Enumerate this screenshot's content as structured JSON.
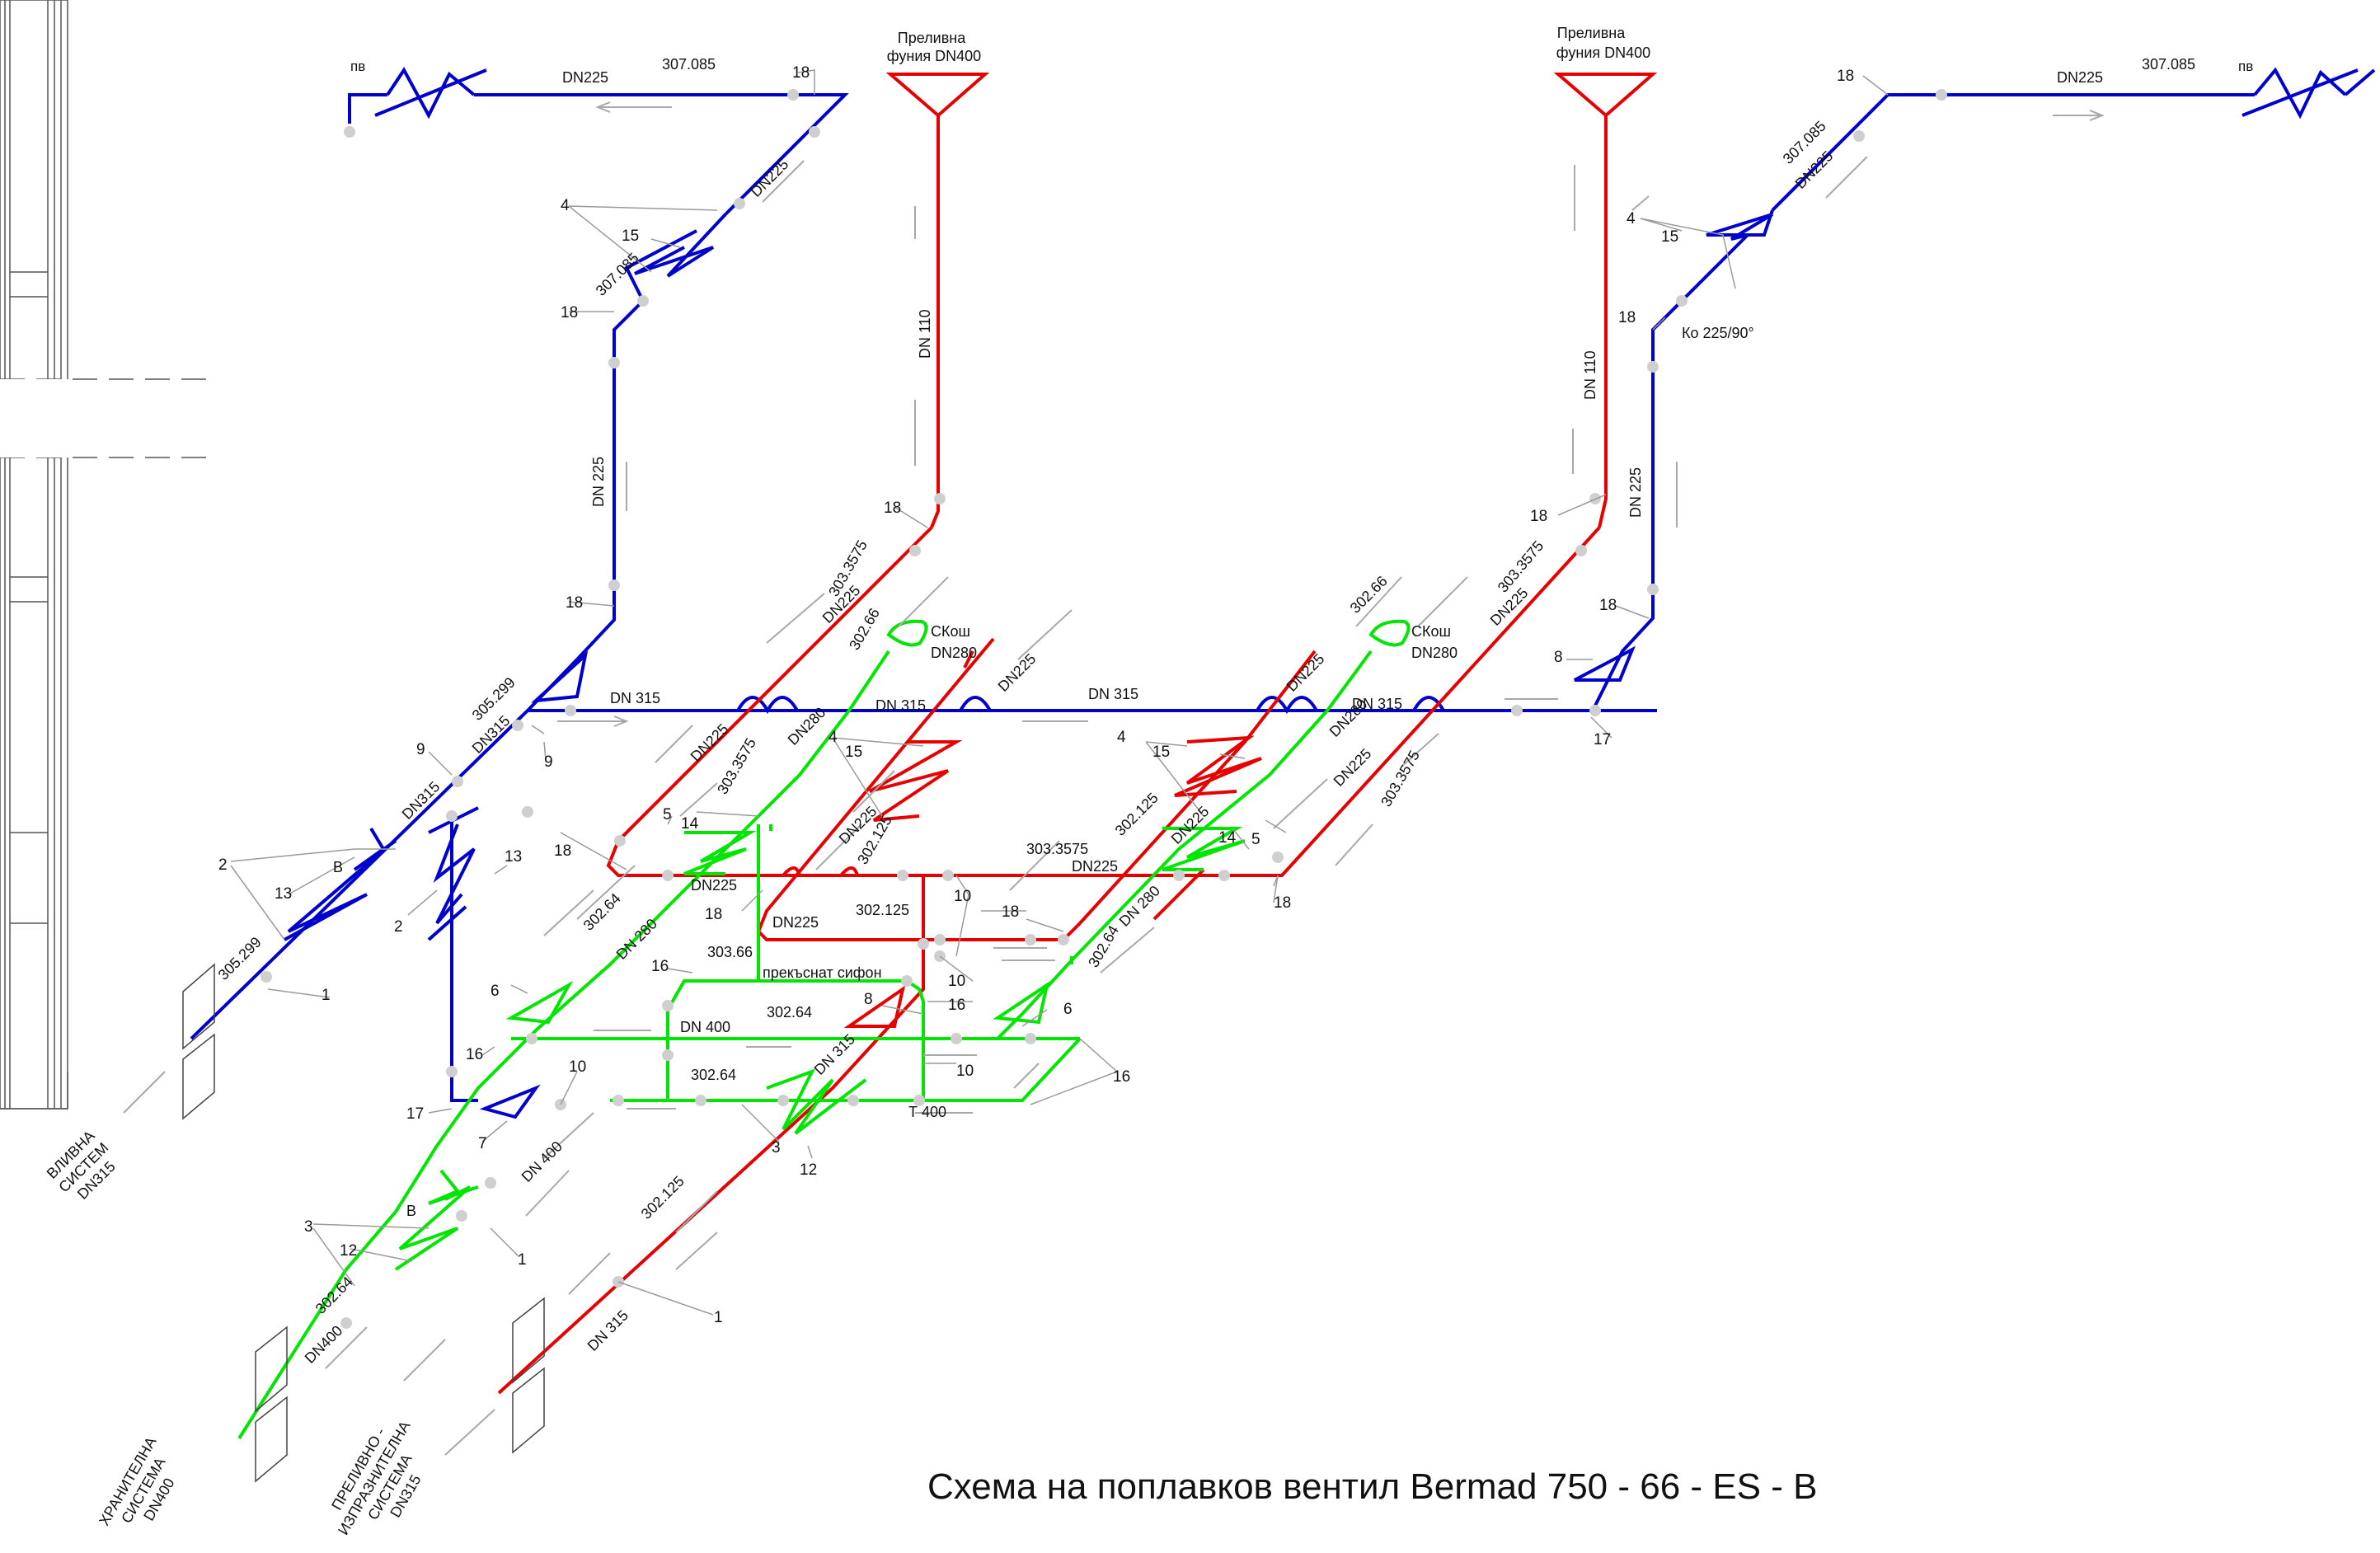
{
  "title": "Схема на поплавков вентил Bermad  750 - 66 - ES - B",
  "colors": {
    "blue_system": "#0000cc",
    "red_system": "#e60000",
    "green_system": "#00e600",
    "leader_lines": "#9a9a9a",
    "flow_arrows": "#a8a8a8"
  },
  "labels": {
    "funnel_left": [
      "Преливна",
      "фуния DN400"
    ],
    "funnel_right": [
      "Преливна",
      "фуния DN400"
    ],
    "strainer_left": [
      "СКош",
      "DN280"
    ],
    "strainer_right": [
      "СКош",
      "DN280"
    ],
    "inlet_system": [
      "ВЛИВНА",
      "СИСТЕМ",
      "DN315"
    ],
    "supply_system": [
      "ХРАНИТЕЛНА",
      "СИСТЕМА",
      "DN400"
    ],
    "overflow_system": [
      "ПРЕЛИВНО -",
      "ИЗПРАЗНИТЕЛНА",
      "СИСТЕМА",
      "DN315"
    ],
    "broken_siphon": "прекъснат сифон",
    "ko": "Ко 225/90°",
    "pv_left": "пв",
    "pv_right": "пв",
    "b_upper": "В",
    "b_lower": "В",
    "t400": "Т 400"
  },
  "pipe_sizes": {
    "dn225": "DN225",
    "dn_225": "DN 225",
    "dn315": "DN315",
    "dn_315": "DN 315",
    "dn_110": "DN 110",
    "dn_400": "DN 400",
    "dn400": "DN400",
    "dn280": "DN280",
    "dn_280": "DN 280",
    "dn_315_lower": "DN 315"
  },
  "elevations": {
    "e307085": "307.085",
    "e305299": "305.299",
    "e303_3575": "303.3575",
    "e303_66": "303.66",
    "e302_66": "302.66",
    "e302_64": "302.64",
    "e302_125": "302.125"
  },
  "marks": {
    "n1": "1",
    "n2": "2",
    "n3": "3",
    "n4": "4",
    "n5": "5",
    "n6": "6",
    "n7": "7",
    "n8": "8",
    "n9": "9",
    "n10": "10",
    "n12": "12",
    "n13": "13",
    "n14": "14",
    "n15": "15",
    "n16": "16",
    "n17": "17",
    "n18": "18"
  }
}
